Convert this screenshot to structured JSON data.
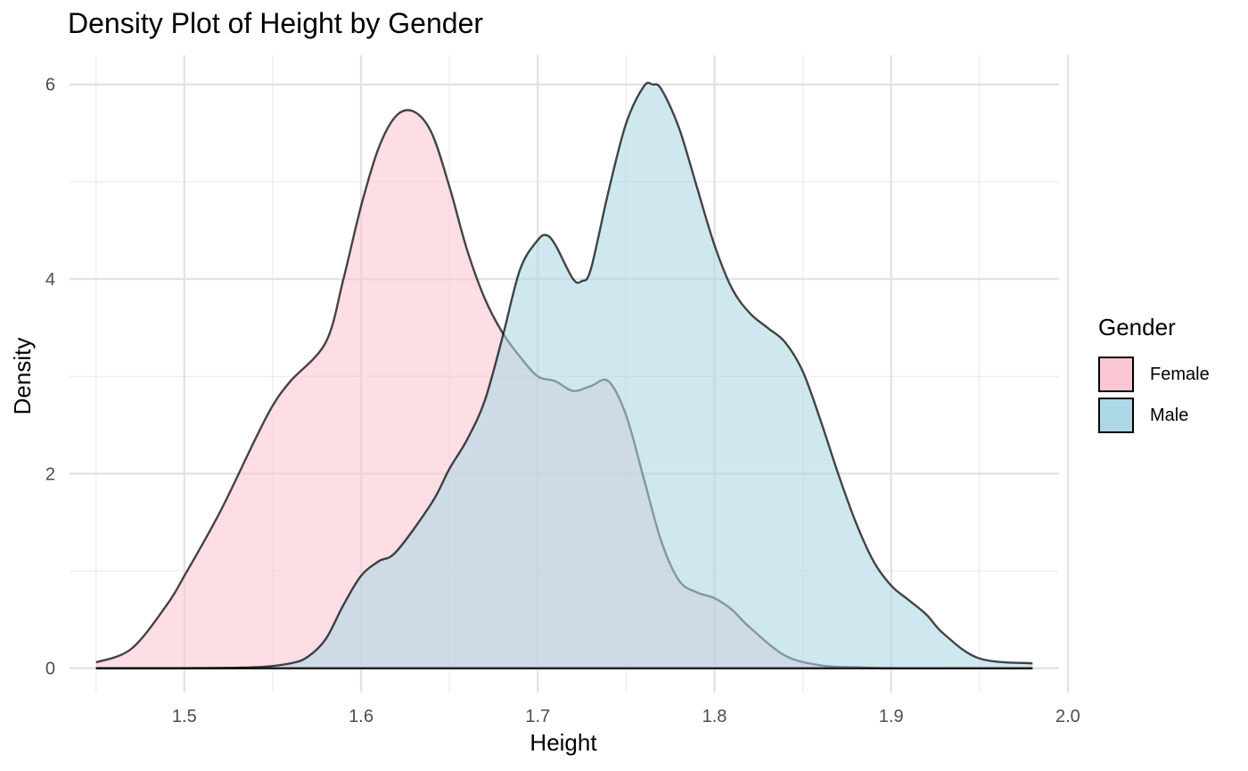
{
  "chart_data": {
    "type": "area",
    "title": "Density Plot of Height by Gender",
    "xlabel": "Height",
    "ylabel": "Density",
    "xlim": [
      1.435,
      1.995
    ],
    "ylim": [
      -0.25,
      6.3
    ],
    "x_ticks": [
      1.5,
      1.6,
      1.7,
      1.8,
      1.9,
      2.0
    ],
    "x_tick_labels": [
      "1.5",
      "1.6",
      "1.7",
      "1.8",
      "1.9",
      "2.0"
    ],
    "x_minor_ticks": [
      1.45,
      1.55,
      1.65,
      1.75,
      1.85,
      1.95
    ],
    "y_ticks": [
      0,
      2,
      4,
      6
    ],
    "y_tick_labels": [
      "0",
      "2",
      "4",
      "6"
    ],
    "y_minor_ticks": [
      1,
      3,
      5
    ],
    "grid": true,
    "legend": {
      "title": "Gender",
      "position": "right"
    },
    "series": [
      {
        "name": "Female",
        "fill": "#f9c6d1",
        "x": [
          1.45,
          1.47,
          1.49,
          1.5,
          1.52,
          1.54,
          1.55,
          1.56,
          1.58,
          1.59,
          1.6,
          1.61,
          1.62,
          1.63,
          1.64,
          1.65,
          1.66,
          1.67,
          1.68,
          1.69,
          1.7,
          1.71,
          1.72,
          1.73,
          1.74,
          1.75,
          1.76,
          1.77,
          1.78,
          1.79,
          1.8,
          1.81,
          1.82,
          1.84,
          1.86,
          1.88,
          1.9,
          1.93,
          1.95,
          1.98
        ],
        "y": [
          0.06,
          0.2,
          0.65,
          0.95,
          1.6,
          2.35,
          2.7,
          2.95,
          3.35,
          4.0,
          4.75,
          5.35,
          5.68,
          5.72,
          5.5,
          4.95,
          4.3,
          3.8,
          3.45,
          3.2,
          3.0,
          2.95,
          2.85,
          2.9,
          2.95,
          2.6,
          1.95,
          1.3,
          0.9,
          0.78,
          0.72,
          0.6,
          0.42,
          0.13,
          0.03,
          0.01,
          0.0,
          0.0,
          0.0,
          0.0
        ]
      },
      {
        "name": "Male",
        "fill": "#add8e6",
        "x": [
          1.45,
          1.5,
          1.54,
          1.56,
          1.57,
          1.58,
          1.59,
          1.6,
          1.61,
          1.62,
          1.64,
          1.65,
          1.66,
          1.67,
          1.68,
          1.69,
          1.7,
          1.705,
          1.71,
          1.72,
          1.725,
          1.73,
          1.74,
          1.75,
          1.76,
          1.765,
          1.77,
          1.78,
          1.79,
          1.8,
          1.81,
          1.82,
          1.83,
          1.84,
          1.85,
          1.86,
          1.87,
          1.88,
          1.89,
          1.9,
          1.91,
          1.92,
          1.93,
          1.95,
          1.98
        ],
        "y": [
          0.0,
          0.0,
          0.01,
          0.05,
          0.12,
          0.3,
          0.65,
          0.95,
          1.1,
          1.2,
          1.7,
          2.05,
          2.35,
          2.75,
          3.4,
          4.1,
          4.4,
          4.45,
          4.35,
          4.0,
          3.98,
          4.1,
          4.9,
          5.6,
          5.98,
          6.0,
          5.95,
          5.55,
          4.95,
          4.35,
          3.9,
          3.65,
          3.5,
          3.35,
          3.05,
          2.55,
          2.0,
          1.5,
          1.1,
          0.85,
          0.7,
          0.55,
          0.35,
          0.1,
          0.05
        ]
      }
    ]
  }
}
